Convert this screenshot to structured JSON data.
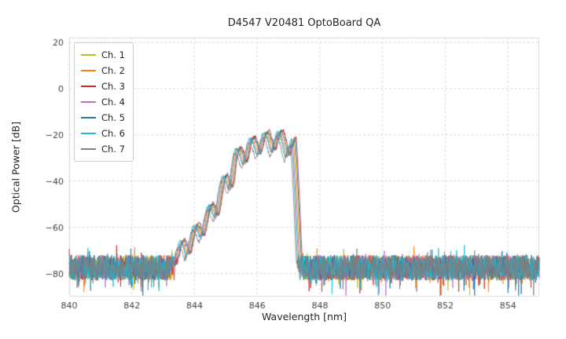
{
  "chart_data": {
    "type": "line",
    "title": "D4547 V20481 OptoBoard QA",
    "xlabel": "Wavelength [nm]",
    "ylabel": "Optical Power [dB]",
    "xlim": [
      840,
      855
    ],
    "ylim": [
      -90,
      22
    ],
    "xticks": [
      840,
      842,
      844,
      846,
      848,
      850,
      852,
      854
    ],
    "yticks": [
      20,
      0,
      -20,
      -40,
      -60,
      -80
    ],
    "grid": true,
    "grid_color": "#cfcfcf",
    "legend_position": "upper-left",
    "noise": {
      "floor_mean_db": -77.5,
      "amplitude_db": 5.5,
      "step_nm": 0.012
    },
    "ripple": {
      "spacing_nm": 0.45,
      "first_peak_nm": 843.6,
      "start_nm": 843.3,
      "stop_nm": 847.45
    },
    "envelope_top": [
      [
        840,
        -77
      ],
      [
        843.0,
        -75
      ],
      [
        843.35,
        -70
      ],
      [
        843.6,
        -66
      ],
      [
        844.0,
        -60
      ],
      [
        844.45,
        -52
      ],
      [
        844.9,
        -40
      ],
      [
        845.3,
        -27
      ],
      [
        845.75,
        -22
      ],
      [
        846.2,
        -19
      ],
      [
        846.65,
        -18
      ],
      [
        847.0,
        -19.5
      ],
      [
        847.18,
        -21
      ],
      [
        847.3,
        -45
      ],
      [
        847.42,
        -77
      ],
      [
        855,
        -77
      ]
    ],
    "envelope_bottom": [
      [
        840,
        -79
      ],
      [
        843.3,
        -77
      ],
      [
        843.8,
        -72
      ],
      [
        844.2,
        -65
      ],
      [
        844.65,
        -57
      ],
      [
        845.1,
        -45
      ],
      [
        845.5,
        -33
      ],
      [
        845.95,
        -28.5
      ],
      [
        846.4,
        -26.5
      ],
      [
        846.85,
        -27.5
      ],
      [
        847.08,
        -30
      ],
      [
        847.25,
        -55
      ],
      [
        847.4,
        -79
      ],
      [
        855,
        -79
      ]
    ],
    "series": [
      {
        "name": "Ch. 1",
        "color": "#bcbd22",
        "x_offset_nm": 0.0,
        "amp_offset_db": 0
      },
      {
        "name": "Ch. 2",
        "color": "#ff7f0e",
        "x_offset_nm": -0.03,
        "amp_offset_db": -0.5
      },
      {
        "name": "Ch. 3",
        "color": "#d62728",
        "x_offset_nm": 0.06,
        "amp_offset_db": 0.5
      },
      {
        "name": "Ch. 4",
        "color": "#b671c8",
        "x_offset_nm": -0.06,
        "amp_offset_db": -1
      },
      {
        "name": "Ch. 5",
        "color": "#1f77b4",
        "x_offset_nm": 0.03,
        "amp_offset_db": 0
      },
      {
        "name": "Ch. 6",
        "color": "#17becf",
        "x_offset_nm": -0.09,
        "amp_offset_db": -0.5
      },
      {
        "name": "Ch. 7",
        "color": "#7f7f7f",
        "x_offset_nm": -0.12,
        "amp_offset_db": -2.5
      }
    ]
  }
}
